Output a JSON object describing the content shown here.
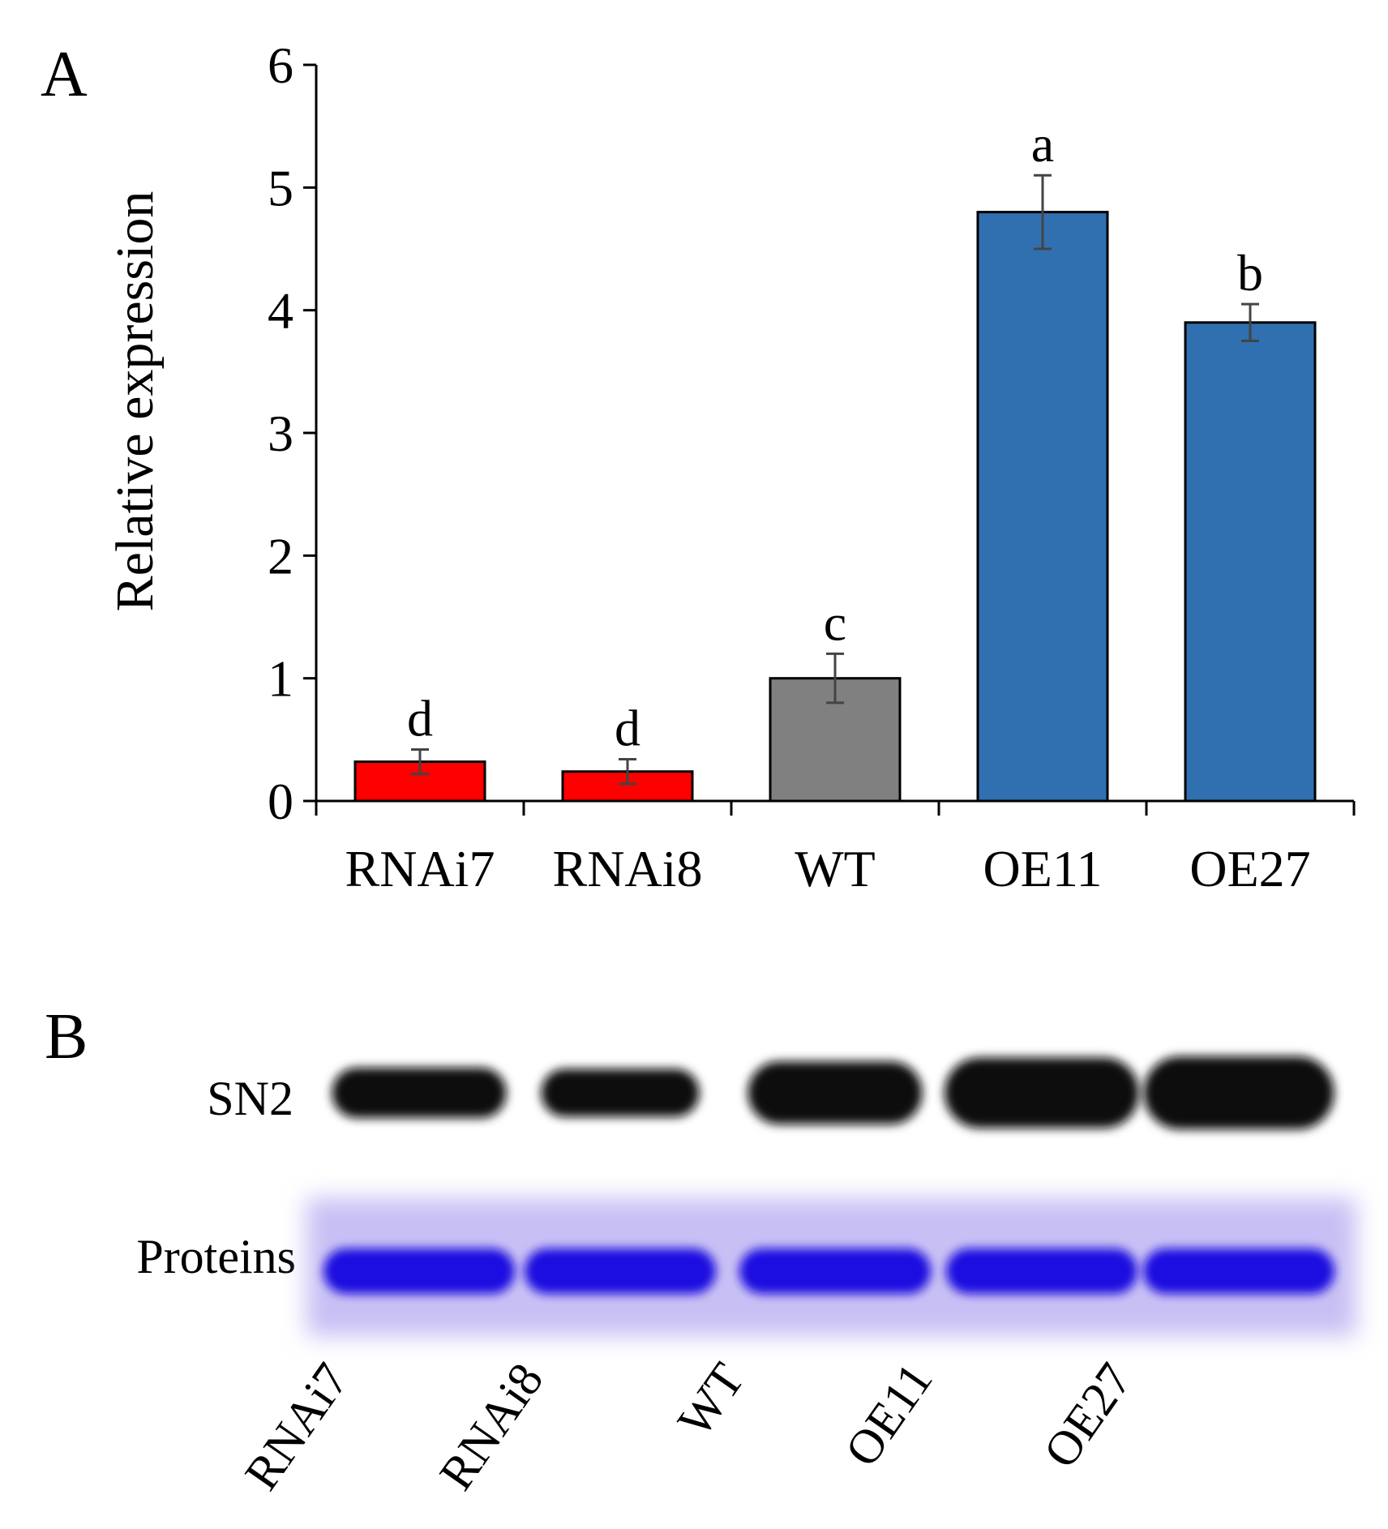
{
  "chart_data": {
    "type": "bar",
    "panel_label": "A",
    "title": "",
    "xlabel": "",
    "ylabel": "Relative expression",
    "ylim": [
      0,
      6
    ],
    "yticks": [
      "0",
      "1",
      "2",
      "3",
      "4",
      "5",
      "6"
    ],
    "categories": [
      "RNAi7",
      "RNAi8",
      "WT",
      "OE11",
      "OE27"
    ],
    "values": [
      0.32,
      0.24,
      1.0,
      4.8,
      3.9
    ],
    "errors": [
      0.1,
      0.1,
      0.2,
      0.3,
      0.15
    ],
    "significance": [
      "d",
      "d",
      "c",
      "a",
      "b"
    ],
    "colors": [
      "#ff0000",
      "#ff0000",
      "#808080",
      "#3070b0",
      "#3070b0"
    ]
  },
  "blot": {
    "panel_label": "B",
    "row_labels": [
      "SN2",
      "Proteins"
    ],
    "lanes": [
      "RNAi7",
      "RNAi8",
      "WT",
      "OE11",
      "OE27"
    ],
    "sn2_band_intensity": [
      0.55,
      0.5,
      0.8,
      0.95,
      1.0
    ],
    "band_color": "#111111",
    "stain_color": "#1a10e0",
    "stain_background": "#c8c0f4"
  }
}
